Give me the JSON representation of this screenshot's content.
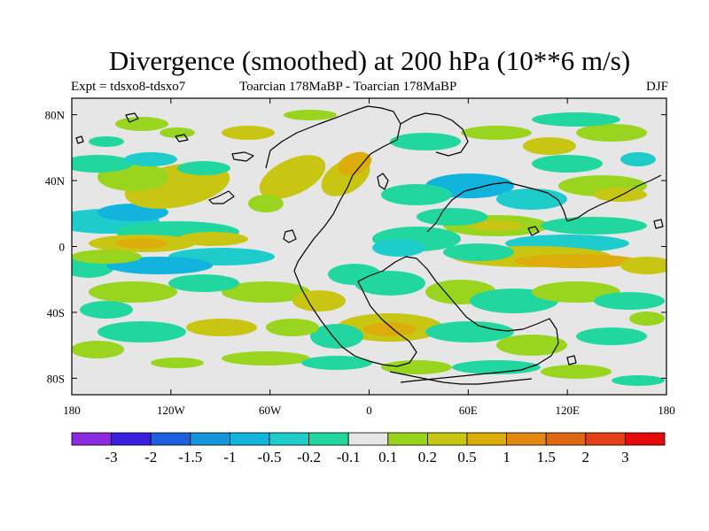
{
  "chart_data": {
    "type": "heatmap",
    "title": "Divergence (smoothed) at 200 hPa (10**6 m/s)",
    "subtitle_left": "Expt = tdsxo8-tdsxo7",
    "subtitle_center": "Toarcian 178MaBP - Toarcian 178MaBP",
    "subtitle_right": "DJF",
    "x_ticks": [
      "180",
      "120W",
      "60W",
      "0",
      "60E",
      "120E",
      "180"
    ],
    "x_tick_values": [
      -180,
      -120,
      -60,
      0,
      60,
      120,
      180
    ],
    "y_ticks": [
      "80N",
      "40N",
      "0",
      "40S",
      "80S"
    ],
    "y_tick_values": [
      80,
      40,
      0,
      -40,
      -80
    ],
    "xlim": [
      -180,
      180
    ],
    "ylim": [
      -90,
      90
    ],
    "colorbar": {
      "levels": [
        "-3",
        "-2",
        "-1.5",
        "-1",
        "-0.5",
        "-0.2",
        "-0.1",
        "0.1",
        "0.2",
        "0.5",
        "1",
        "1.5",
        "2",
        "3"
      ],
      "colors": [
        "#8a2be2",
        "#3a1fe0",
        "#1d5fdc",
        "#1595dc",
        "#12b4dd",
        "#1fcccc",
        "#22d6a0",
        "#e6e6e6",
        "#99d51e",
        "#c9c613",
        "#ddad0c",
        "#e08810",
        "#e06712",
        "#e33e16",
        "#e50a0a"
      ]
    }
  },
  "colors": {
    "background": "#ffffff",
    "neutral": "#e6e6e6",
    "coastline": "#000000"
  }
}
